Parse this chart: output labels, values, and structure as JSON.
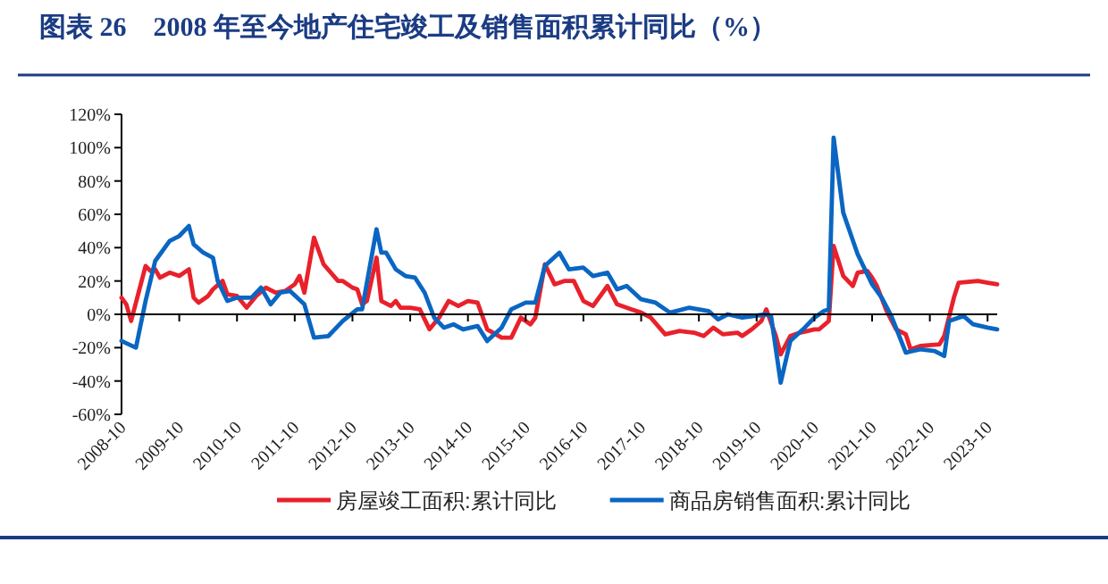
{
  "chart_data": {
    "type": "line",
    "title": "图表 26　2008 年至今地产住宅竣工及销售面积累计同比（%）",
    "xlim": [
      "2008-10",
      "2023-12"
    ],
    "xticks": [
      "2008-10",
      "2009-10",
      "2010-10",
      "2011-10",
      "2012-10",
      "2013-10",
      "2014-10",
      "2015-10",
      "2016-10",
      "2017-10",
      "2018-10",
      "2019-10",
      "2020-10",
      "2021-10",
      "2022-10",
      "2023-10"
    ],
    "ylim": [
      -60,
      120
    ],
    "yticks": [
      {
        "value": -60,
        "label": "-60%"
      },
      {
        "value": -40,
        "label": "-40%"
      },
      {
        "value": -20,
        "label": "-20%"
      },
      {
        "value": 0,
        "label": "0%"
      },
      {
        "value": 20,
        "label": "20%"
      },
      {
        "value": 40,
        "label": "40%"
      },
      {
        "value": 60,
        "label": "60%"
      },
      {
        "value": 80,
        "label": "80%"
      },
      {
        "value": 100,
        "label": "100%"
      },
      {
        "value": 120,
        "label": "120%"
      }
    ],
    "legend": "bottom",
    "series": [
      {
        "name": "房屋竣工面积:累计同比",
        "color": "#e8212b",
        "x": [
          "2008-10",
          "2008-11",
          "2008-12",
          "2009-03",
          "2009-04",
          "2009-05",
          "2009-06",
          "2009-08",
          "2009-10",
          "2009-12",
          "2010-01",
          "2010-02",
          "2010-04",
          "2010-05",
          "2010-07",
          "2010-08",
          "2010-10",
          "2010-12",
          "2011-02",
          "2011-04",
          "2011-06",
          "2011-08",
          "2011-10",
          "2011-11",
          "2011-12",
          "2012-02",
          "2012-04",
          "2012-07",
          "2012-08",
          "2012-10",
          "2012-11",
          "2012-12",
          "2013-01",
          "2013-03",
          "2013-04",
          "2013-06",
          "2013-07",
          "2013-08",
          "2013-10",
          "2013-12",
          "2014-02",
          "2014-04",
          "2014-06",
          "2014-08",
          "2014-10",
          "2014-12",
          "2015-02",
          "2015-05",
          "2015-07",
          "2015-09",
          "2015-11",
          "2015-12",
          "2016-02",
          "2016-04",
          "2016-06",
          "2016-08",
          "2016-10",
          "2016-12",
          "2017-03",
          "2017-05",
          "2017-08",
          "2017-10",
          "2017-12",
          "2018-03",
          "2018-06",
          "2018-09",
          "2018-11",
          "2019-01",
          "2019-03",
          "2019-06",
          "2019-07",
          "2019-09",
          "2019-11",
          "2019-12",
          "2020-02",
          "2020-03",
          "2020-05",
          "2020-07",
          "2020-10",
          "2020-11",
          "2021-01",
          "2021-02",
          "2021-04",
          "2021-06",
          "2021-07",
          "2021-09",
          "2021-10",
          "2021-11",
          "2022-01",
          "2022-03",
          "2022-05",
          "2022-06",
          "2022-08",
          "2022-12",
          "2023-01",
          "2023-03",
          "2023-04",
          "2023-08",
          "2023-10",
          "2023-12"
        ],
        "values": [
          10,
          6,
          -4,
          29,
          26,
          27,
          22,
          25,
          23,
          27,
          10,
          7,
          11,
          15,
          20,
          12,
          11,
          4,
          11,
          16,
          13,
          14,
          18,
          23,
          13,
          46,
          30,
          20,
          20,
          16,
          15,
          6,
          8,
          34,
          8,
          5,
          8,
          4,
          4,
          3,
          -9,
          -2,
          8,
          5,
          8,
          7,
          -9,
          -14,
          -14,
          -2,
          -6,
          -2,
          30,
          18,
          20,
          20,
          8,
          5,
          17,
          6,
          3,
          1,
          -2,
          -12,
          -10,
          -11,
          -13,
          -8,
          -12,
          -11,
          -13,
          -9,
          -4,
          3,
          -13,
          -24,
          -13,
          -11,
          -9,
          -9,
          -4,
          41,
          23,
          17,
          25,
          26,
          22,
          17,
          2,
          -9,
          -12,
          -21,
          -19,
          -18,
          -13,
          10,
          19,
          20,
          19,
          18
        ]
      },
      {
        "name": "商品房销售面积:累计同比",
        "color": "#0a66c2",
        "x": [
          "2008-10",
          "2009-01",
          "2009-03",
          "2009-05",
          "2009-08",
          "2009-10",
          "2009-12",
          "2010-01",
          "2010-03",
          "2010-05",
          "2010-06",
          "2010-08",
          "2010-10",
          "2011-01",
          "2011-03",
          "2011-05",
          "2011-07",
          "2011-09",
          "2011-12",
          "2012-02",
          "2012-05",
          "2012-08",
          "2012-11",
          "2012-12",
          "2013-03",
          "2013-04",
          "2013-05",
          "2013-07",
          "2013-09",
          "2013-11",
          "2014-01",
          "2014-03",
          "2014-05",
          "2014-07",
          "2014-09",
          "2014-12",
          "2015-02",
          "2015-05",
          "2015-07",
          "2015-10",
          "2015-12",
          "2016-02",
          "2016-05",
          "2016-07",
          "2016-10",
          "2016-12",
          "2017-03",
          "2017-05",
          "2017-07",
          "2017-10",
          "2018-01",
          "2018-04",
          "2018-08",
          "2018-12",
          "2019-02",
          "2019-04",
          "2019-07",
          "2019-12",
          "2020-01",
          "2020-03",
          "2020-05",
          "2020-08",
          "2020-10",
          "2020-12",
          "2021-01",
          "2021-02",
          "2021-04",
          "2021-07",
          "2021-10",
          "2021-12",
          "2022-02",
          "2022-05",
          "2022-08",
          "2022-11",
          "2023-01",
          "2023-02",
          "2023-05",
          "2023-07",
          "2023-10",
          "2023-12"
        ],
        "values": [
          -16,
          -20,
          8,
          32,
          44,
          47,
          53,
          42,
          37,
          34,
          20,
          8,
          10,
          10,
          16,
          6,
          13,
          14,
          6,
          -14,
          -13,
          -4,
          3,
          3,
          51,
          37,
          37,
          27,
          23,
          22,
          13,
          -2,
          -8,
          -6,
          -9,
          -7,
          -16,
          -8,
          3,
          7,
          7,
          29,
          37,
          27,
          28,
          23,
          25,
          15,
          17,
          9,
          7,
          1,
          4,
          2,
          -3,
          0,
          -2,
          0,
          -1,
          -41,
          -16,
          -8,
          -2,
          2,
          3,
          106,
          61,
          36,
          18,
          10,
          -1,
          -23,
          -21,
          -22,
          -25,
          -4,
          -1,
          -6,
          -8,
          -9
        ]
      }
    ]
  }
}
